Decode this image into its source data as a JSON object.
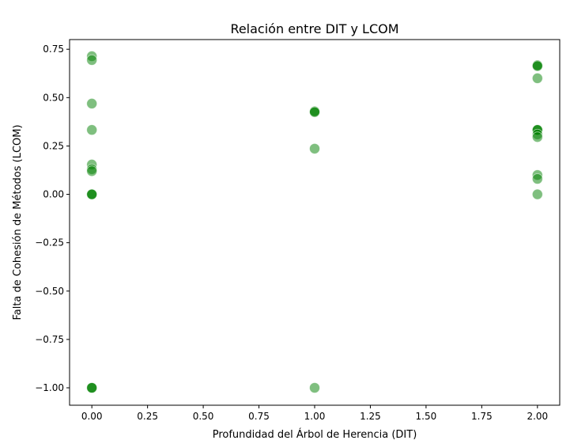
{
  "chart_data": {
    "type": "scatter",
    "title": "Relación entre DIT y LCOM",
    "xlabel": "Profundidad del Árbol de Herencia (DIT)",
    "ylabel": "Falta de Cohesión de Métodos (LCOM)",
    "xlim": [
      -0.1,
      2.1
    ],
    "ylim": [
      -1.09,
      0.8
    ],
    "xticks": [
      0.0,
      0.25,
      0.5,
      0.75,
      1.0,
      1.25,
      1.5,
      1.75,
      2.0
    ],
    "xtick_labels": [
      "0.00",
      "0.25",
      "0.50",
      "0.75",
      "1.00",
      "1.25",
      "1.50",
      "1.75",
      "2.00"
    ],
    "yticks": [
      -1.0,
      -0.75,
      -0.5,
      -0.25,
      0.0,
      0.25,
      0.5,
      0.75
    ],
    "ytick_labels": [
      "−1.00",
      "−0.75",
      "−0.50",
      "−0.25",
      "0.00",
      "0.25",
      "0.50",
      "0.75"
    ],
    "grid": false,
    "marker_color": "#008000",
    "marker_alpha": 0.5,
    "points": [
      {
        "x": 0,
        "y": 0.714
      },
      {
        "x": 0,
        "y": 0.694
      },
      {
        "x": 0,
        "y": 0.469
      },
      {
        "x": 0,
        "y": 0.333
      },
      {
        "x": 0,
        "y": 0.154
      },
      {
        "x": 0,
        "y": 0.13
      },
      {
        "x": 0,
        "y": 0.12
      },
      {
        "x": 0,
        "y": 0.0
      },
      {
        "x": 0,
        "y": 0.0
      },
      {
        "x": 0,
        "y": 0.0
      },
      {
        "x": 0,
        "y": -1.0
      },
      {
        "x": 0,
        "y": -1.0
      },
      {
        "x": 0,
        "y": -1.0
      },
      {
        "x": 1,
        "y": 0.429
      },
      {
        "x": 1,
        "y": 0.429
      },
      {
        "x": 1,
        "y": 0.425
      },
      {
        "x": 1,
        "y": 0.236
      },
      {
        "x": 1,
        "y": -1.0
      },
      {
        "x": 2,
        "y": 0.667
      },
      {
        "x": 2,
        "y": 0.667
      },
      {
        "x": 2,
        "y": 0.663
      },
      {
        "x": 2,
        "y": 0.6
      },
      {
        "x": 2,
        "y": 0.333
      },
      {
        "x": 2,
        "y": 0.333
      },
      {
        "x": 2,
        "y": 0.333
      },
      {
        "x": 2,
        "y": 0.31
      },
      {
        "x": 2,
        "y": 0.296
      },
      {
        "x": 2,
        "y": 0.1
      },
      {
        "x": 2,
        "y": 0.08
      },
      {
        "x": 2,
        "y": 0.0
      }
    ]
  }
}
